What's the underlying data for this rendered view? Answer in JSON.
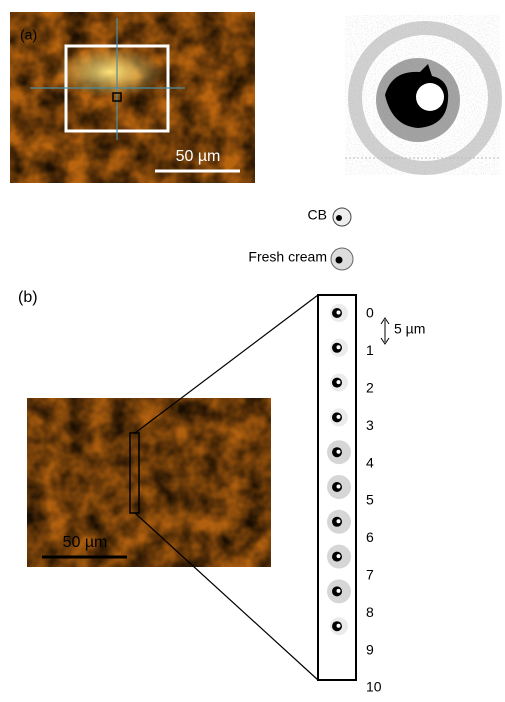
{
  "panel_a": {
    "label": "(a)",
    "scale_bar": "50 µm"
  },
  "legend": [
    "CB",
    "Fresh cream"
  ],
  "panel_b": {
    "label": "(b)",
    "scale_bar": "50 µm",
    "scan_labels": [
      0,
      1,
      2,
      3,
      4,
      5,
      6,
      7,
      8,
      9,
      10
    ],
    "step": "5 µm"
  }
}
